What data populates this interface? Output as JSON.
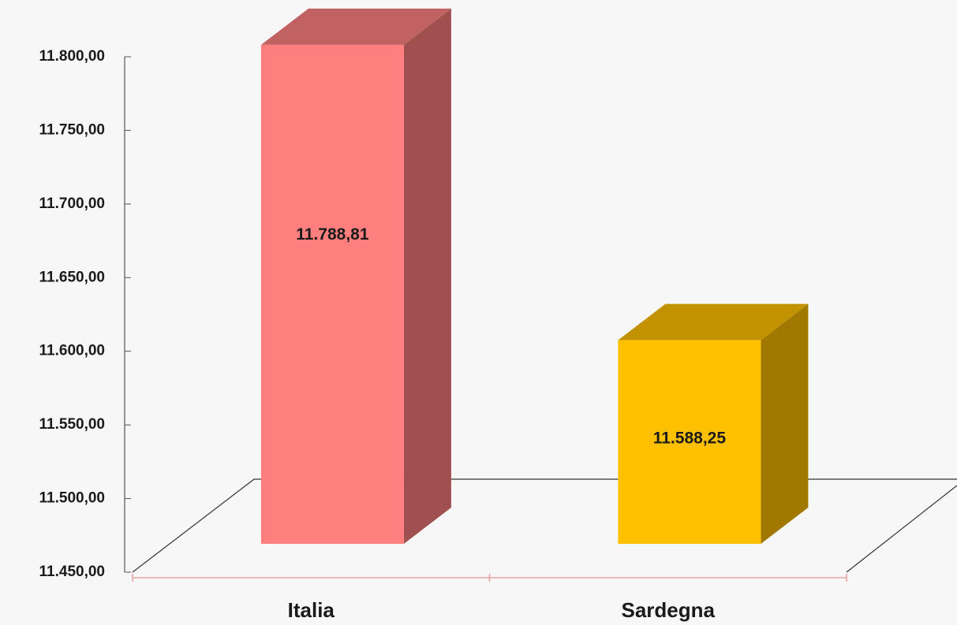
{
  "chart_data": {
    "type": "bar3d",
    "categories": [
      "Italia",
      "Sardegna"
    ],
    "values": [
      11788.81,
      11588.25
    ],
    "value_labels": [
      "11.788,81",
      "11.588,25"
    ],
    "colors": [
      "#ff7f7f",
      "#ffc000"
    ],
    "ylim": [
      11450,
      11800
    ],
    "yticks": [
      {
        "value": 11450,
        "label": "11.450,00"
      },
      {
        "value": 11500,
        "label": "11.500,00"
      },
      {
        "value": 11550,
        "label": "11.550,00"
      },
      {
        "value": 11600,
        "label": "11.600,00"
      },
      {
        "value": 11650,
        "label": "11.650,00"
      },
      {
        "value": 11700,
        "label": "11.700,00"
      },
      {
        "value": 11750,
        "label": "11.750,00"
      },
      {
        "value": 11800,
        "label": "11.800,00"
      }
    ]
  }
}
